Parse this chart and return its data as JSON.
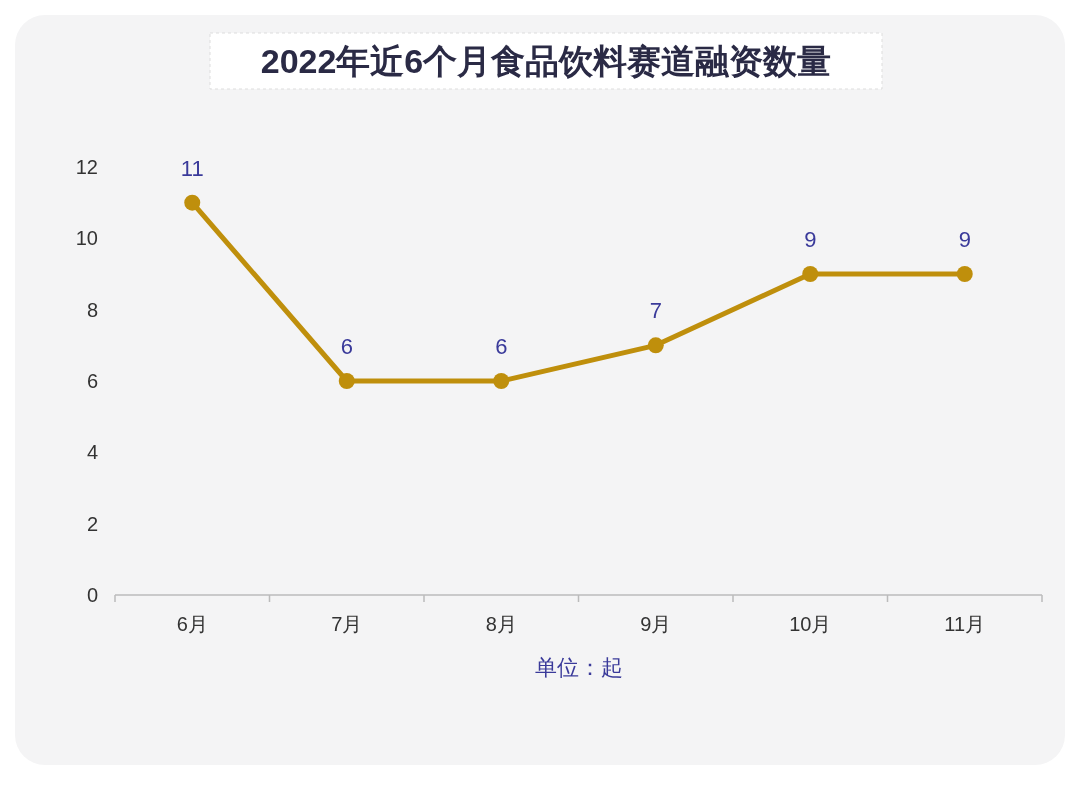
{
  "chart_data": {
    "type": "line",
    "title": "2022年近6个月食品饮料赛道融资数量",
    "xlabel": "单位：起",
    "categories": [
      "6月",
      "7月",
      "8月",
      "9月",
      "10月",
      "11月"
    ],
    "values": [
      11,
      6,
      6,
      7,
      9,
      9
    ],
    "color": "#bf8f0c",
    "ylim": [
      0,
      12
    ],
    "yticks": [
      0,
      2,
      4,
      6,
      8,
      10,
      12
    ],
    "data_labels": true,
    "marker": "circle"
  }
}
